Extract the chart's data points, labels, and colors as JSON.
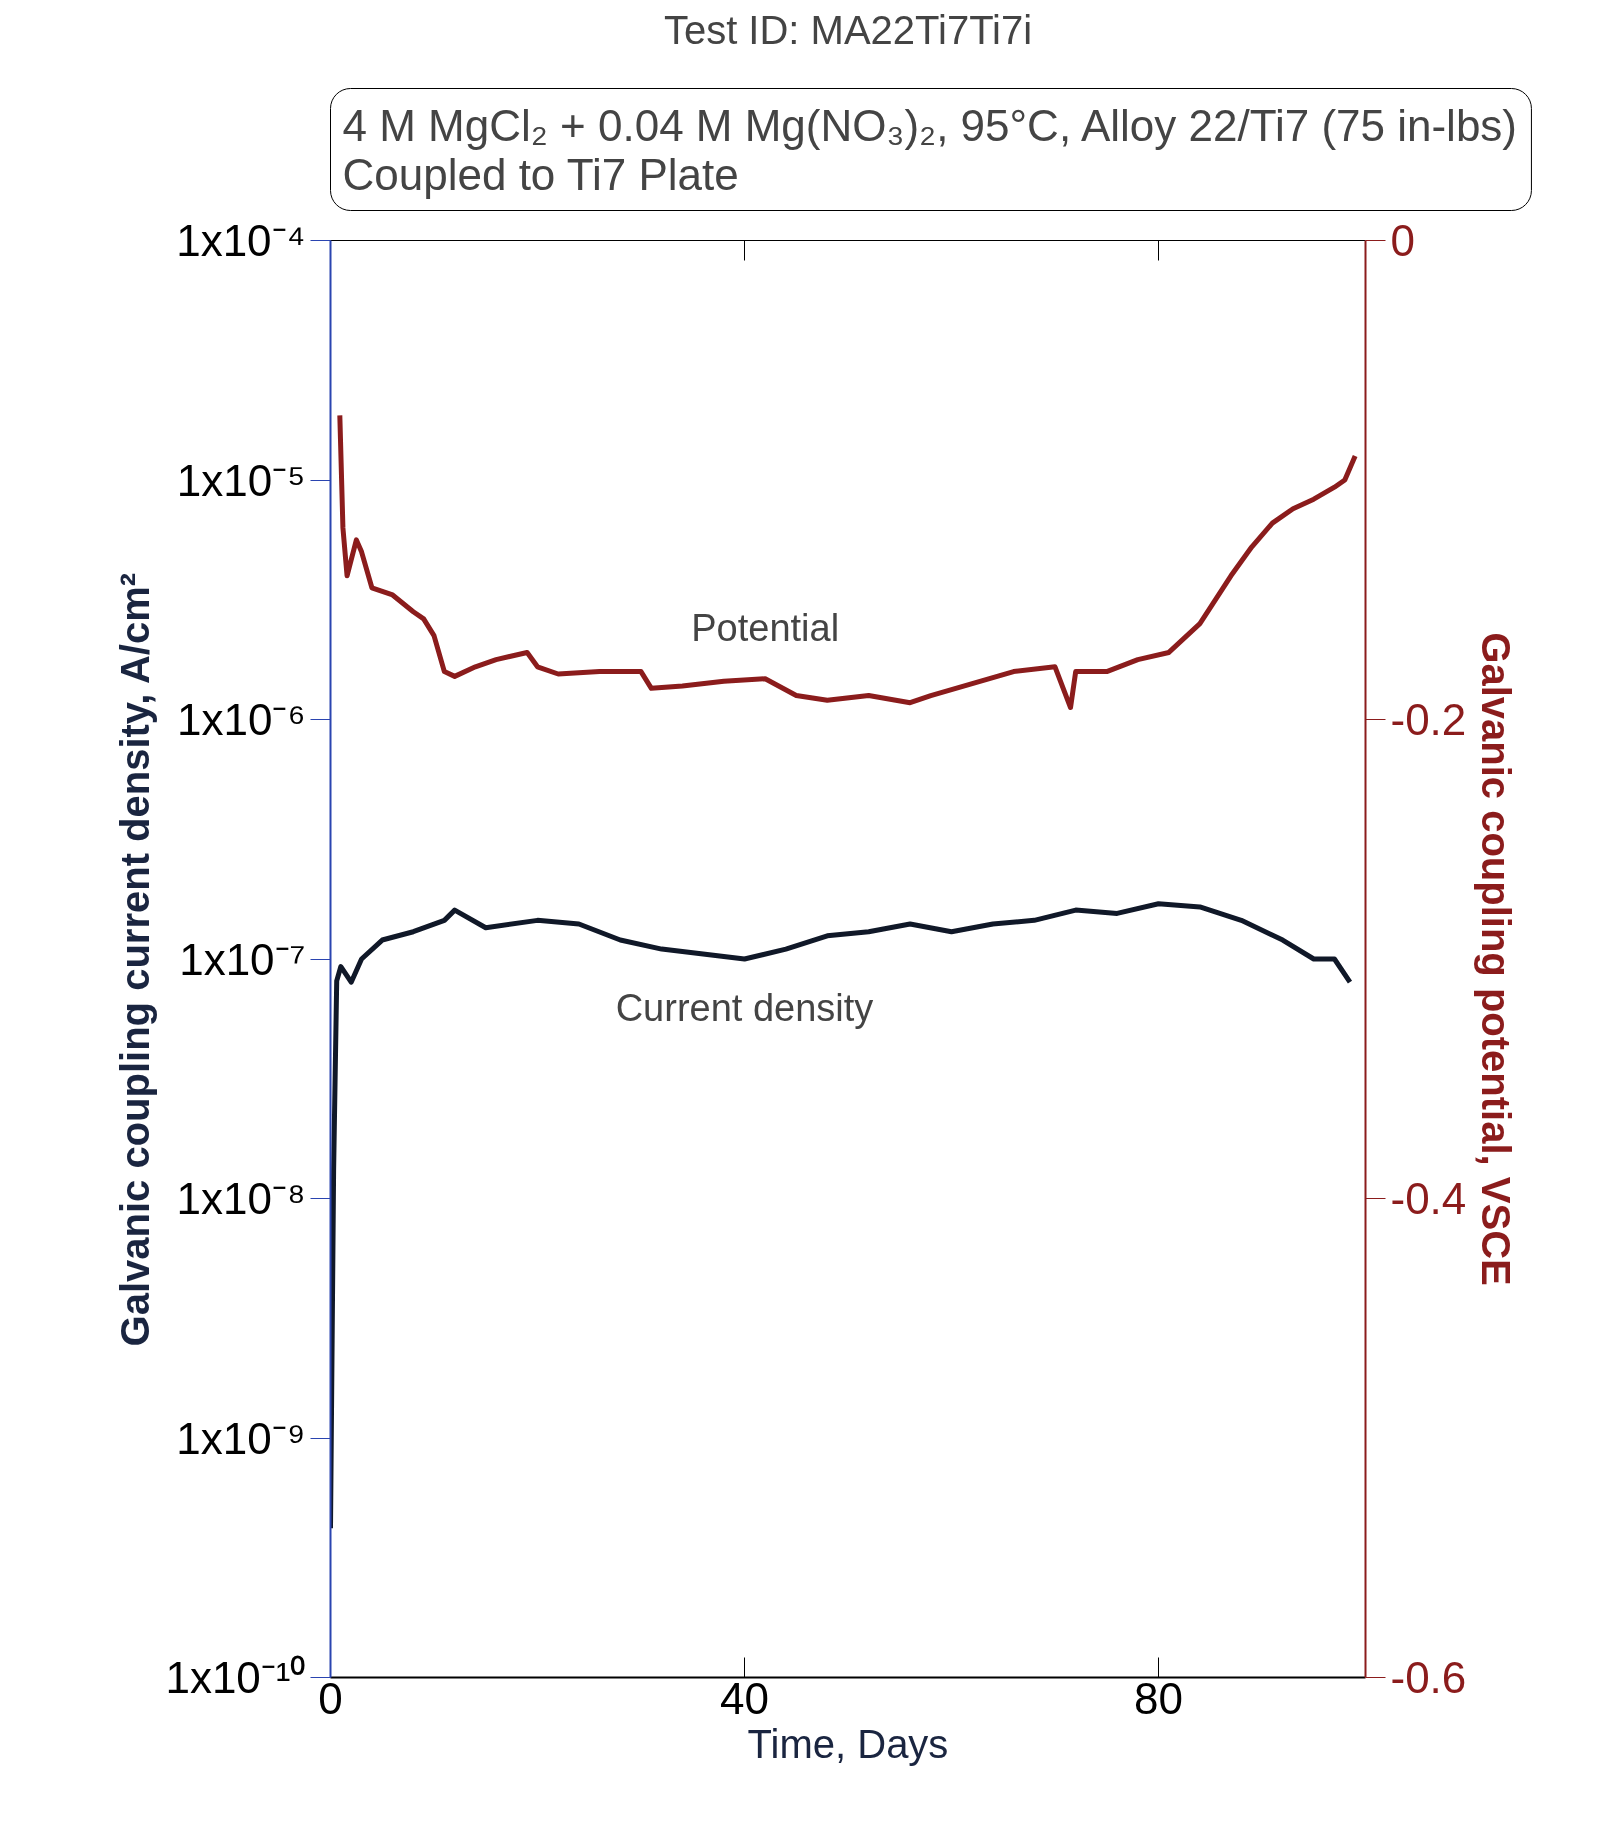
{
  "chart_data": {
    "type": "line",
    "title": "Test ID: MA22Ti7Ti7i",
    "subtitle": "4 M MgCl₂ + 0.04 M Mg(NO₃)₂, 95°C, Alloy 22/Ti7 (75 in-lbs)\nCoupled to Ti7 Plate",
    "xlabel": "Time, Days",
    "ylabel": "Galvanic coupling current density, A/cm²",
    "y2label": "Galvanic coupling potential, VSCE",
    "log": "y",
    "grid": false,
    "legend": false,
    "marker": "none",
    "line_style": "solid",
    "xlim": [
      0,
      100
    ],
    "xticks": [
      0,
      40,
      80
    ],
    "ylim": [
      1e-10,
      0.0001
    ],
    "yticks": [
      {
        "value": 1e-10,
        "label": "1x10⁻¹⁰"
      },
      {
        "value": 1e-09,
        "label": "1x10⁻⁹"
      },
      {
        "value": 1e-08,
        "label": "1x10⁻⁸"
      },
      {
        "value": 1e-07,
        "label": "1x10⁻⁷"
      },
      {
        "value": 1e-06,
        "label": "1x10⁻⁶"
      },
      {
        "value": 1e-05,
        "label": "1x10⁻⁵"
      },
      {
        "value": 0.0001,
        "label": "1x10⁻⁴"
      }
    ],
    "y2lim": [
      -0.6,
      0
    ],
    "y2ticks": [
      -0.6,
      -0.4,
      -0.2,
      0
    ],
    "series": [
      {
        "name": "Potential",
        "color": "#8b1c1c",
        "axis": "y2",
        "x": [
          0.9,
          1.2,
          1.6,
          2.5,
          3,
          4,
          6,
          8,
          9,
          10,
          11,
          12,
          14,
          16,
          19,
          20,
          22,
          26,
          30,
          31,
          34,
          38,
          42,
          45,
          48,
          52,
          56,
          58,
          62,
          66,
          70,
          71.5,
          72,
          75,
          78,
          81,
          84,
          87,
          89,
          91,
          93,
          95,
          97,
          98,
          99
        ],
        "values": [
          -0.073,
          -0.12,
          -0.14,
          -0.125,
          -0.13,
          -0.145,
          -0.148,
          -0.155,
          -0.158,
          -0.165,
          -0.18,
          -0.182,
          -0.178,
          -0.175,
          -0.172,
          -0.178,
          -0.181,
          -0.18,
          -0.18,
          -0.187,
          -0.186,
          -0.184,
          -0.183,
          -0.19,
          -0.192,
          -0.19,
          -0.193,
          -0.19,
          -0.185,
          -0.18,
          -0.178,
          -0.195,
          -0.18,
          -0.18,
          -0.175,
          -0.172,
          -0.16,
          -0.14,
          -0.128,
          -0.118,
          -0.112,
          -0.108,
          -0.103,
          -0.1,
          -0.09
        ]
      },
      {
        "name": "Current density",
        "color": "#101828",
        "x": [
          0,
          0.3,
          0.6,
          1,
          2,
          3,
          5,
          8,
          11,
          12,
          15,
          20,
          24,
          28,
          32,
          36,
          40,
          44,
          48,
          52,
          56,
          60,
          64,
          68,
          72,
          76,
          80,
          84,
          88,
          92,
          95,
          97,
          98.5
        ],
        "values": [
          4.2e-10,
          1.3e-08,
          8.1e-08,
          9.3e-08,
          8e-08,
          1e-07,
          1.2e-07,
          1.3e-07,
          1.45e-07,
          1.6e-07,
          1.35e-07,
          1.45e-07,
          1.4e-07,
          1.2e-07,
          1.1e-07,
          1.05e-07,
          1e-07,
          1.1e-07,
          1.25e-07,
          1.3e-07,
          1.4e-07,
          1.3e-07,
          1.4e-07,
          1.45e-07,
          1.6e-07,
          1.55e-07,
          1.7e-07,
          1.65e-07,
          1.45e-07,
          1.2e-07,
          1e-07,
          1e-07,
          8e-08
        ]
      }
    ]
  }
}
